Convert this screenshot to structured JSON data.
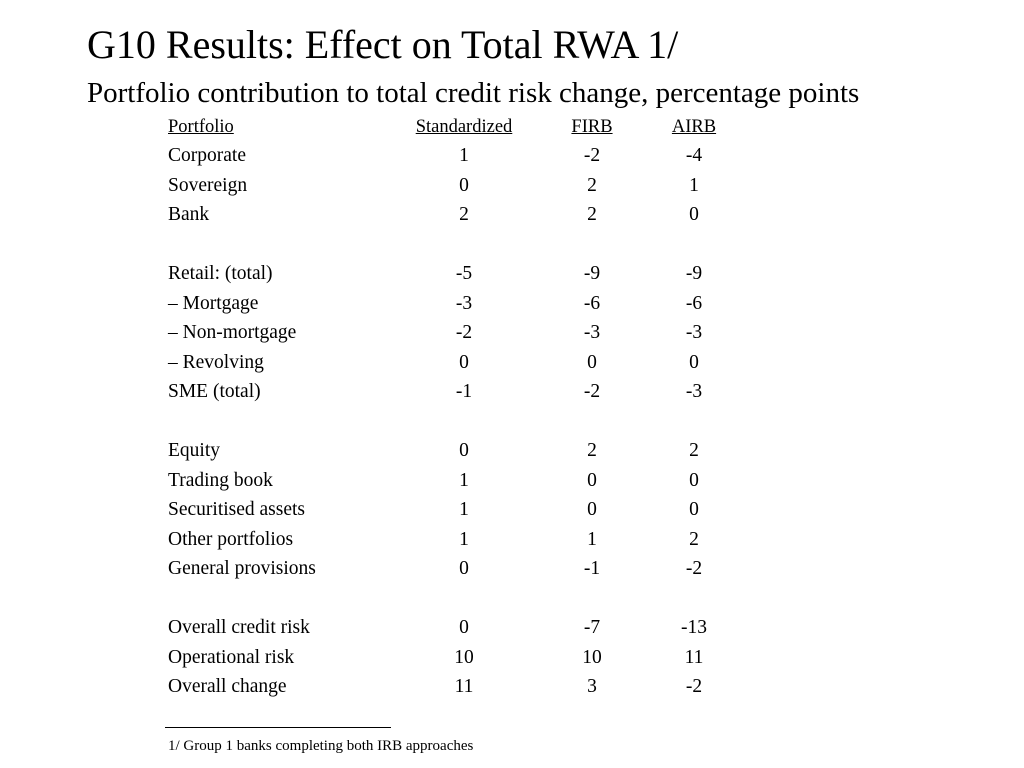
{
  "title": "G10 Results:  Effect on Total RWA 1/",
  "subtitle": "Portfolio contribution to total credit risk change, percentage points",
  "table": {
    "headers": {
      "portfolio": "Portfolio",
      "standardized": "Standardized",
      "firb": "FIRB",
      "airb": "AIRB"
    },
    "groups": [
      [
        {
          "label": "Corporate",
          "std": "1",
          "firb": "-2",
          "airb": "-4"
        },
        {
          "label": "Sovereign",
          "std": "0",
          "firb": "2",
          "airb": "1"
        },
        {
          "label": "Bank",
          "std": "2",
          "firb": "2",
          "airb": "0"
        }
      ],
      [
        {
          "label": "Retail: (total)",
          "std": "-5",
          "firb": "-9",
          "airb": "-9"
        },
        {
          "label": "– Mortgage",
          "std": "-3",
          "firb": "-6",
          "airb": "-6"
        },
        {
          "label": "– Non-mortgage",
          "std": "-2",
          "firb": "-3",
          "airb": "-3"
        },
        {
          "label": "– Revolving",
          "std": "0",
          "firb": "0",
          "airb": "0"
        },
        {
          "label": "SME (total)",
          "std": "-1",
          "firb": "-2",
          "airb": "-3"
        }
      ],
      [
        {
          "label": "Equity",
          "std": "0",
          "firb": "2",
          "airb": "2"
        },
        {
          "label": "Trading book",
          "std": "1",
          "firb": "0",
          "airb": "0"
        },
        {
          "label": "Securitised assets",
          "std": "1",
          "firb": "0",
          "airb": "0"
        },
        {
          "label": "Other portfolios",
          "std": "1",
          "firb": "1",
          "airb": "2"
        },
        {
          "label": "General provisions",
          "std": "0",
          "firb": "-1",
          "airb": "-2"
        }
      ],
      [
        {
          "label": "Overall credit risk",
          "std": "0",
          "firb": "-7",
          "airb": "-13"
        },
        {
          "label": "Operational risk",
          "std": "10",
          "firb": "10",
          "airb": "11"
        },
        {
          "label": "Overall change",
          "std": "11",
          "firb": "3",
          "airb": "-2"
        }
      ]
    ]
  },
  "footnote": "1/ Group 1 banks completing both IRB approaches"
}
